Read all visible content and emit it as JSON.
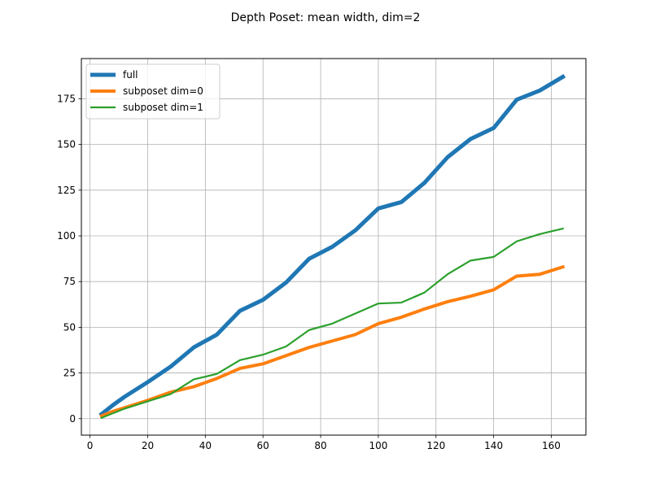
{
  "chart_data": {
    "type": "line",
    "title": "Depth Poset: mean width, dim=2",
    "xlabel": "",
    "ylabel": "",
    "xlim": [
      -3,
      172
    ],
    "ylim": [
      -9,
      197
    ],
    "xticks": [
      0,
      20,
      40,
      60,
      80,
      100,
      120,
      140,
      160
    ],
    "yticks": [
      0,
      25,
      50,
      75,
      100,
      125,
      150,
      175
    ],
    "grid": true,
    "legend_position": "top-left",
    "series": [
      {
        "name": "full",
        "color": "#1f77b4",
        "x": [
          4,
          8,
          12,
          20,
          28,
          36,
          44,
          52,
          60,
          68,
          76,
          84,
          92,
          100,
          108,
          116,
          124,
          132,
          140,
          148,
          156,
          164
        ],
        "y": [
          2.5,
          7.5,
          12,
          20,
          28.5,
          39,
          46,
          59,
          65,
          74.5,
          87.5,
          94,
          103,
          115,
          118.5,
          129,
          143,
          153,
          159,
          174.5,
          179.5,
          187
        ]
      },
      {
        "name": "subposet dim=0",
        "color": "#ff7f0e",
        "x": [
          4,
          8,
          12,
          20,
          28,
          36,
          44,
          52,
          60,
          68,
          76,
          84,
          92,
          100,
          108,
          116,
          124,
          132,
          140,
          148,
          156,
          164
        ],
        "y": [
          1.5,
          4,
          6,
          10,
          14.5,
          17.5,
          22,
          27.5,
          30,
          34.5,
          39,
          42.5,
          46,
          52,
          55.5,
          60,
          64,
          67,
          70.5,
          78,
          79,
          83
        ]
      },
      {
        "name": "subposet dim=1",
        "color": "#2ca02c",
        "x": [
          4,
          8,
          12,
          20,
          28,
          36,
          44,
          52,
          60,
          68,
          76,
          84,
          92,
          100,
          108,
          116,
          124,
          132,
          140,
          148,
          156,
          164
        ],
        "y": [
          0.5,
          3,
          5.5,
          9.5,
          13.5,
          21.5,
          24.5,
          32,
          35,
          39.5,
          48.5,
          52,
          57.5,
          63,
          63.5,
          69,
          79,
          86.5,
          88.5,
          97,
          101,
          104
        ]
      }
    ]
  }
}
